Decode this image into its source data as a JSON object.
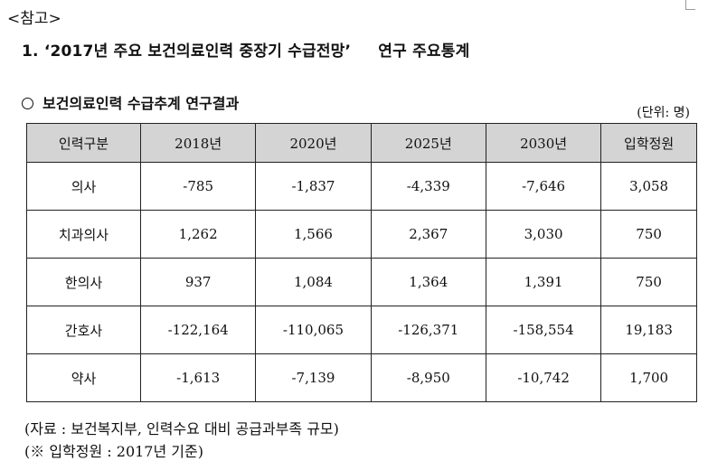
{
  "ref_label": "<참고>",
  "heading": {
    "number": "1.",
    "title": "‘2017년 주요 보건의료인력 중장기 수급전망’",
    "tail": "연구 주요통계"
  },
  "subheading": "보건의료인력 수급추계 연구결과",
  "unit": "(단위: 명)",
  "table": {
    "headers": [
      "인력구분",
      "2018년",
      "2020년",
      "2025년",
      "2030년",
      "입학정원"
    ],
    "rows": [
      [
        "의사",
        "-785",
        "-1,837",
        "-4,339",
        "-7,646",
        "3,058"
      ],
      [
        "치과의사",
        "1,262",
        "1,566",
        "2,367",
        "3,030",
        "750"
      ],
      [
        "한의사",
        "937",
        "1,084",
        "1,364",
        "1,391",
        "750"
      ],
      [
        "간호사",
        "-122,164",
        "-110,065",
        "-126,371",
        "-158,554",
        "19,183"
      ],
      [
        "약사",
        "-1,613",
        "-7,139",
        "-8,950",
        "-10,742",
        "1,700"
      ]
    ]
  },
  "source_note": "(자료 : 보건복지부, 인력수요 대비 공급과부족 규모)",
  "footnote": "(※ 입학정원 : 2017년 기준)"
}
